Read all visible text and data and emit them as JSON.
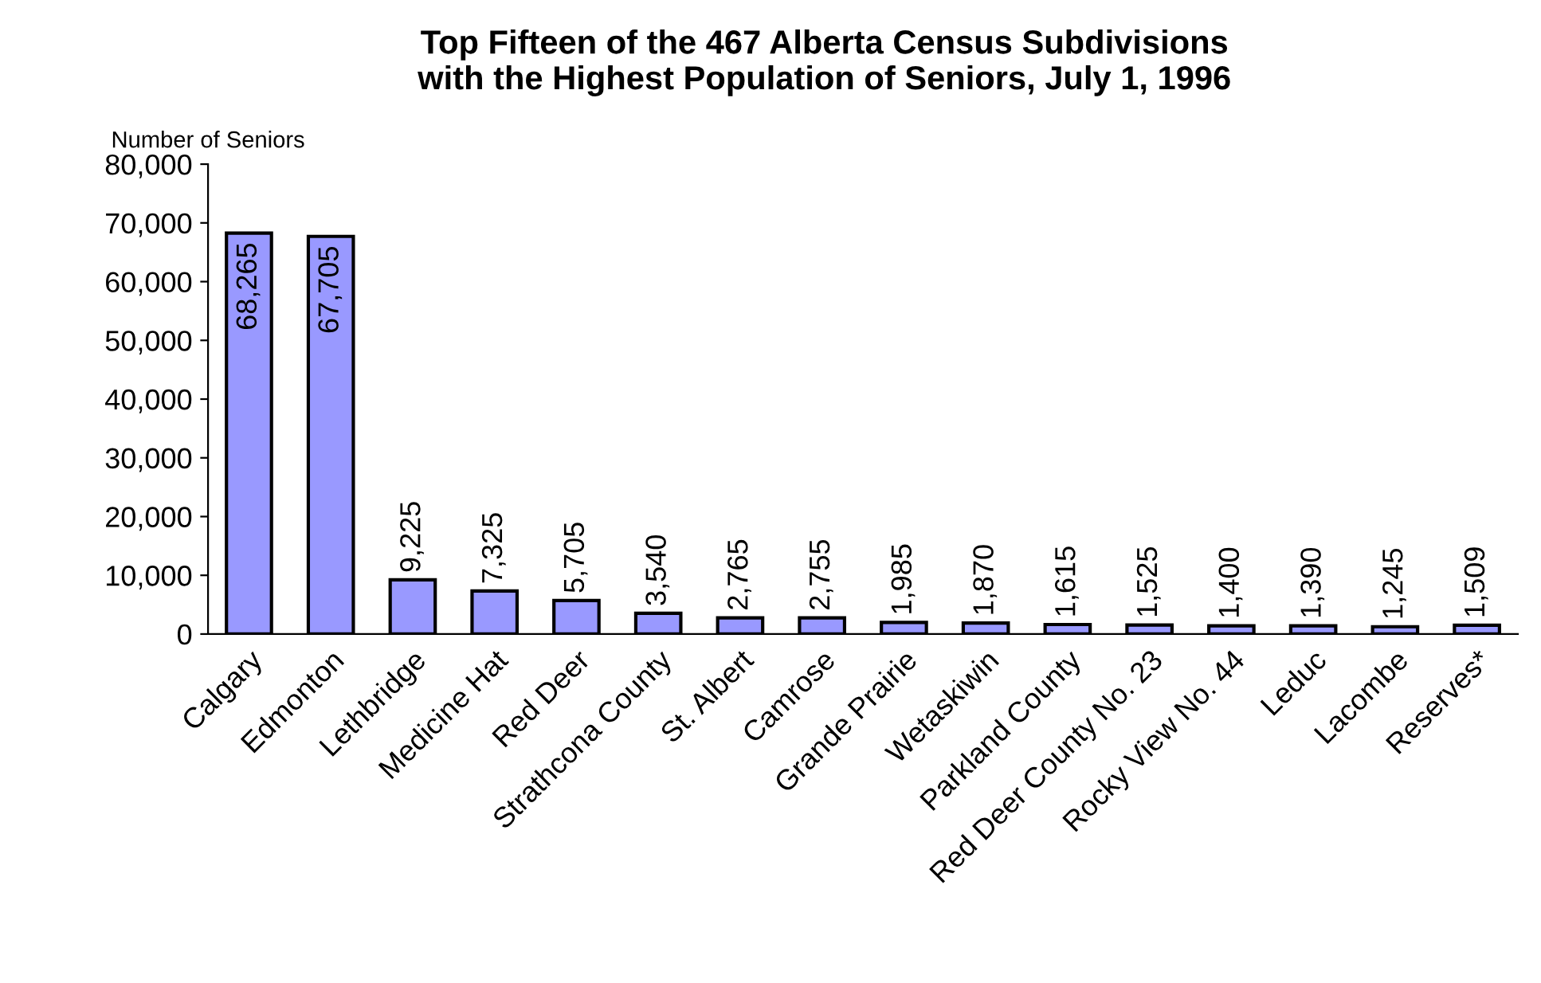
{
  "chart_data": {
    "type": "bar",
    "title": "Top Fifteen of the 467 Alberta Census Subdivisions\nwith the Highest Population of Seniors, July 1, 1996",
    "ylabel": "Number of Seniors",
    "categories": [
      "Calgary",
      "Edmonton",
      "Lethbridge",
      "Medicine Hat",
      "Red Deer",
      "Strathcona County",
      "St. Albert",
      "Camrose",
      "Grande Prairie",
      "Wetaskiwin",
      "Parkland County",
      "Red Deer County No. 23",
      "Rocky View No. 44",
      "Leduc",
      "Lacombe",
      "Reserves*"
    ],
    "values": [
      68265,
      67705,
      9225,
      7325,
      5705,
      3540,
      2765,
      2755,
      1985,
      1870,
      1615,
      1525,
      1400,
      1390,
      1245,
      1509
    ],
    "value_labels": [
      "68,265",
      "67,705",
      "9,225",
      "7,325",
      "5,705",
      "3,540",
      "2,765",
      "2,755",
      "1,985",
      "1,870",
      "1,615",
      "1,525",
      "1,400",
      "1,390",
      "1,245",
      "1,509"
    ],
    "color": "#9999ff",
    "ylim": [
      0,
      80000
    ],
    "yticks": [
      {
        "value": 0,
        "label": "0"
      },
      {
        "value": 10000,
        "label": "10,000"
      },
      {
        "value": 20000,
        "label": "20,000"
      },
      {
        "value": 30000,
        "label": "30,000"
      },
      {
        "value": 40000,
        "label": "40,000"
      },
      {
        "value": 50000,
        "label": "50,000"
      },
      {
        "value": 60000,
        "label": "60,000"
      },
      {
        "value": 70000,
        "label": "70,000"
      },
      {
        "value": 80000,
        "label": "80,000"
      }
    ],
    "grid": false,
    "legend": false
  }
}
